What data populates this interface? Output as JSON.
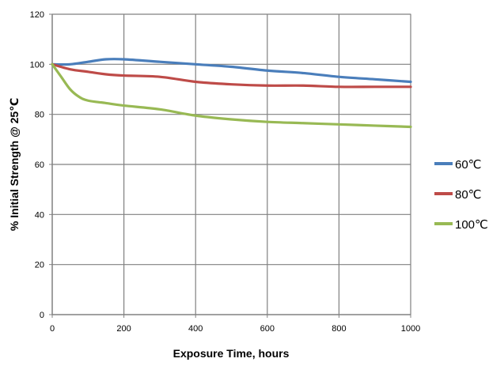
{
  "chart_data": {
    "type": "line",
    "xlabel": "Exposure Time, hours",
    "ylabel": "% Initial Strength @ 25℃",
    "xlim": [
      0,
      1000
    ],
    "ylim": [
      0,
      120
    ],
    "x_ticks": [
      0,
      200,
      400,
      600,
      800,
      1000
    ],
    "y_ticks": [
      0,
      20,
      40,
      60,
      80,
      100,
      120
    ],
    "x_tick_labels": [
      "0",
      "200",
      "400",
      "600",
      "800",
      "1000"
    ],
    "y_tick_labels": [
      "0",
      "20",
      "40",
      "60",
      "80",
      "100",
      "120"
    ],
    "grid": true,
    "legend_position": "right",
    "series": [
      {
        "name": "60℃",
        "color": "#4a7ebb",
        "x": [
          0,
          50,
          100,
          150,
          200,
          300,
          400,
          500,
          600,
          700,
          800,
          900,
          1000
        ],
        "y": [
          100,
          100,
          101,
          102,
          102,
          101,
          100,
          99,
          97.5,
          96.5,
          95,
          94,
          93
        ]
      },
      {
        "name": "80℃",
        "color": "#be4b48",
        "x": [
          0,
          50,
          100,
          150,
          200,
          300,
          400,
          500,
          600,
          700,
          800,
          900,
          1000
        ],
        "y": [
          100,
          98,
          97,
          96,
          95.5,
          95,
          93,
          92,
          91.5,
          91.5,
          91,
          91,
          91
        ]
      },
      {
        "name": "100℃",
        "color": "#98b954",
        "x": [
          0,
          25,
          50,
          75,
          100,
          150,
          200,
          300,
          400,
          500,
          600,
          700,
          800,
          900,
          1000
        ],
        "y": [
          100,
          95,
          90,
          87,
          85.5,
          84.5,
          83.5,
          82,
          79.5,
          78,
          77,
          76.5,
          76,
          75.5,
          75
        ]
      }
    ]
  }
}
